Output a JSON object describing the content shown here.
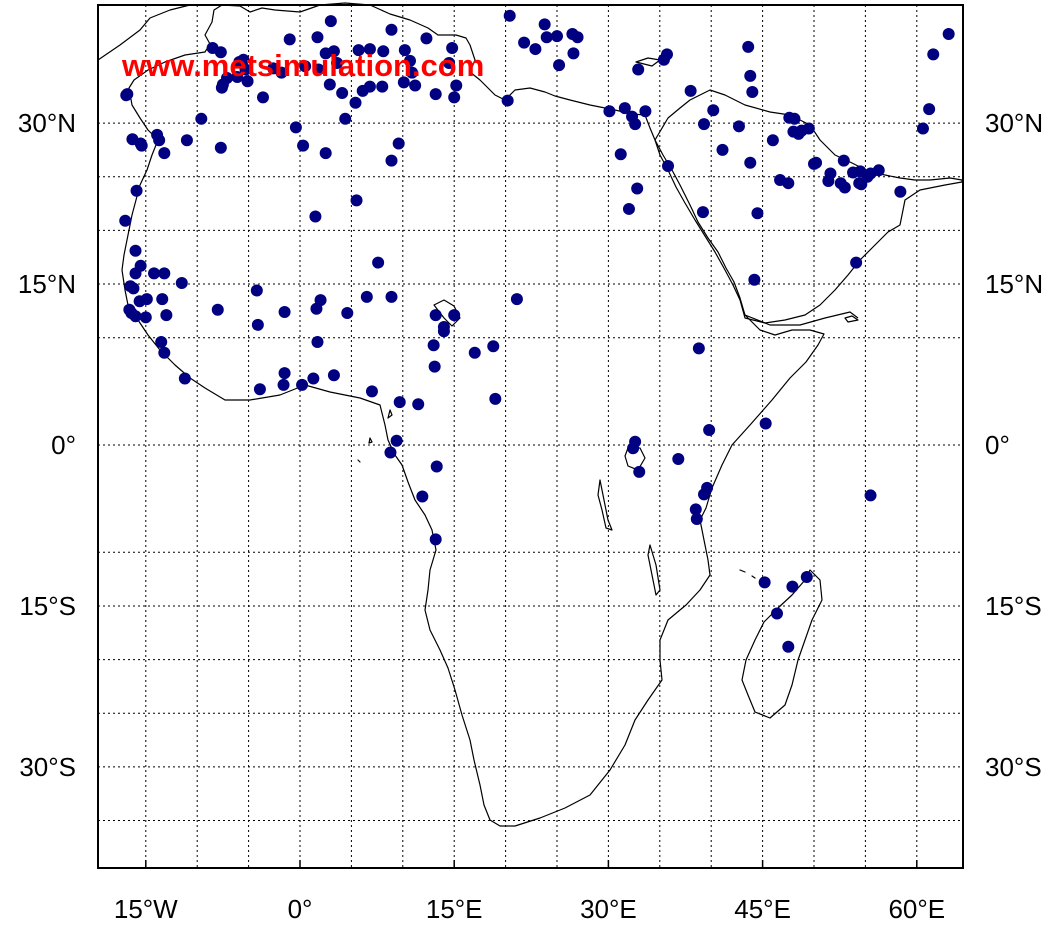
{
  "watermark": "www.metsimulation.com",
  "map": {
    "projection": "cylindrical-equidistant",
    "lon_range": [
      -20,
      64
    ],
    "lat_range": [
      -40,
      38
    ],
    "grid": true,
    "grid_style": "dotted",
    "marker_color": "#000080",
    "coastline_color": "#000000",
    "lon_ticks": [
      {
        "value": -15,
        "label": "15°W"
      },
      {
        "value": 0,
        "label": "0°"
      },
      {
        "value": 15,
        "label": "15°E"
      },
      {
        "value": 30,
        "label": "30°E"
      },
      {
        "value": 45,
        "label": "45°E"
      },
      {
        "value": 60,
        "label": "60°E"
      }
    ],
    "lat_ticks": [
      {
        "value": 30,
        "label": "30°N"
      },
      {
        "value": 15,
        "label": "15°N"
      },
      {
        "value": 0,
        "label": "0°"
      },
      {
        "value": -15,
        "label": "15°S"
      },
      {
        "value": -30,
        "label": "30°S"
      }
    ],
    "extra_grid_lat": [
      25,
      20,
      10,
      -10,
      -20,
      -25,
      -35
    ],
    "extra_grid_lon": [
      -10,
      -5,
      5,
      10,
      20,
      25,
      35,
      40,
      50,
      55
    ]
  },
  "chart_data": {
    "type": "scatter",
    "title": "",
    "xlabel": "",
    "ylabel": "",
    "xlim": [
      -20,
      64
    ],
    "ylim": [
      -40,
      38
    ],
    "marker_color": "#000080",
    "stations": [
      [
        -8.5,
        37.0
      ],
      [
        -7.7,
        36.6
      ],
      [
        -5.9,
        35.7
      ],
      [
        -5.5,
        35.9
      ],
      [
        -2.6,
        35.1
      ],
      [
        -5.3,
        35.0
      ],
      [
        -6.1,
        34.3
      ],
      [
        -7.1,
        34.2
      ],
      [
        -7.5,
        33.6
      ],
      [
        -5.1,
        33.9
      ],
      [
        -7.6,
        33.3
      ],
      [
        -1.8,
        34.7
      ],
      [
        0.5,
        35.3
      ],
      [
        1.8,
        35.0
      ],
      [
        3.6,
        35.6
      ],
      [
        2.5,
        36.5
      ],
      [
        3.3,
        36.7
      ],
      [
        5.7,
        36.8
      ],
      [
        6.8,
        36.9
      ],
      [
        8.1,
        36.7
      ],
      [
        10.2,
        36.8
      ],
      [
        10.7,
        35.8
      ],
      [
        10.9,
        34.7
      ],
      [
        10.1,
        33.8
      ],
      [
        11.2,
        33.5
      ],
      [
        13.2,
        32.7
      ],
      [
        15.2,
        33.5
      ],
      [
        15.0,
        32.4
      ],
      [
        20.2,
        32.1
      ],
      [
        14.5,
        35.6
      ],
      [
        -1.0,
        37.8
      ],
      [
        1.7,
        38.0
      ],
      [
        3.0,
        39.5
      ],
      [
        8.9,
        38.7
      ],
      [
        12.3,
        37.9
      ],
      [
        14.8,
        37.0
      ],
      [
        -15.5,
        28.1
      ],
      [
        -16.3,
        28.5
      ],
      [
        -13.9,
        28.9
      ],
      [
        -13.7,
        28.4
      ],
      [
        -15.4,
        27.9
      ],
      [
        -13.2,
        27.2
      ],
      [
        -11.0,
        28.4
      ],
      [
        -9.6,
        30.4
      ],
      [
        -7.7,
        27.7
      ],
      [
        -16.8,
        32.7
      ],
      [
        -16.9,
        32.6
      ],
      [
        -3.6,
        32.4
      ],
      [
        2.9,
        33.6
      ],
      [
        6.1,
        33.0
      ],
      [
        6.8,
        33.4
      ],
      [
        8.0,
        33.4
      ],
      [
        5.4,
        31.9
      ],
      [
        4.1,
        32.8
      ],
      [
        -0.4,
        29.6
      ],
      [
        0.3,
        27.9
      ],
      [
        2.5,
        27.2
      ],
      [
        1.5,
        21.3
      ],
      [
        5.5,
        22.8
      ],
      [
        8.9,
        26.5
      ],
      [
        9.6,
        28.1
      ],
      [
        4.4,
        30.4
      ],
      [
        -15.9,
        23.7
      ],
      [
        -17.0,
        20.9
      ],
      [
        -16.0,
        18.1
      ],
      [
        -16.5,
        14.8
      ],
      [
        -16.0,
        16.0
      ],
      [
        -16.2,
        14.6
      ],
      [
        -15.5,
        16.7
      ],
      [
        -14.2,
        16.0
      ],
      [
        -13.2,
        16.0
      ],
      [
        -15.6,
        13.4
      ],
      [
        -16.6,
        12.6
      ],
      [
        -16.4,
        12.3
      ],
      [
        -16.0,
        12.0
      ],
      [
        -14.9,
        13.6
      ],
      [
        -13.4,
        13.6
      ],
      [
        -15.0,
        11.9
      ],
      [
        -13.0,
        12.1
      ],
      [
        -11.5,
        15.1
      ],
      [
        -8.0,
        12.6
      ],
      [
        -4.2,
        14.4
      ],
      [
        -4.1,
        11.2
      ],
      [
        -1.5,
        12.4
      ],
      [
        1.6,
        12.7
      ],
      [
        2.0,
        13.5
      ],
      [
        4.6,
        12.3
      ],
      [
        6.5,
        13.8
      ],
      [
        7.6,
        17.0
      ],
      [
        8.9,
        13.8
      ],
      [
        13.2,
        12.1
      ],
      [
        14.0,
        11.0
      ],
      [
        15.0,
        12.1
      ],
      [
        17.0,
        8.6
      ],
      [
        18.8,
        9.2
      ],
      [
        13.0,
        9.3
      ],
      [
        13.1,
        7.3
      ],
      [
        14.0,
        10.6
      ],
      [
        21.1,
        13.6
      ],
      [
        19.0,
        4.3
      ],
      [
        11.5,
        3.8
      ],
      [
        9.7,
        4.0
      ],
      [
        7.0,
        5.0
      ],
      [
        3.3,
        6.5
      ],
      [
        1.3,
        6.2
      ],
      [
        -1.6,
        5.6
      ],
      [
        -3.9,
        5.2
      ],
      [
        -1.5,
        6.7
      ],
      [
        0.2,
        5.6
      ],
      [
        -11.2,
        6.2
      ],
      [
        -13.2,
        8.6
      ],
      [
        -13.5,
        9.6
      ],
      [
        1.7,
        9.6
      ],
      [
        9.4,
        0.4
      ],
      [
        8.8,
        -0.7
      ],
      [
        13.3,
        -2.0
      ],
      [
        11.9,
        -4.8
      ],
      [
        13.2,
        -8.8
      ],
      [
        32.6,
        0.3
      ],
      [
        32.4,
        -0.3
      ],
      [
        33.0,
        -2.5
      ],
      [
        36.8,
        -1.3
      ],
      [
        39.6,
        -4.0
      ],
      [
        39.3,
        -4.6
      ],
      [
        38.6,
        -6.9
      ],
      [
        38.5,
        -6.0
      ],
      [
        39.8,
        1.4
      ],
      [
        45.3,
        2.0
      ],
      [
        38.8,
        9.0
      ],
      [
        55.5,
        -4.7
      ],
      [
        45.2,
        -12.8
      ],
      [
        49.3,
        -12.3
      ],
      [
        47.9,
        -13.2
      ],
      [
        46.4,
        -15.7
      ],
      [
        47.5,
        -18.8
      ],
      [
        32.6,
        29.9
      ],
      [
        31.6,
        31.4
      ],
      [
        33.6,
        31.1
      ],
      [
        30.1,
        31.1
      ],
      [
        32.3,
        30.6
      ],
      [
        31.2,
        27.1
      ],
      [
        32.0,
        22.0
      ],
      [
        32.8,
        23.9
      ],
      [
        35.8,
        26.0
      ],
      [
        38.0,
        33.0
      ],
      [
        39.3,
        29.9
      ],
      [
        40.2,
        31.2
      ],
      [
        42.7,
        29.7
      ],
      [
        43.8,
        34.4
      ],
      [
        44.0,
        32.9
      ],
      [
        43.6,
        37.1
      ],
      [
        35.4,
        35.9
      ],
      [
        35.7,
        36.4
      ],
      [
        32.9,
        35.0
      ],
      [
        26.6,
        36.5
      ],
      [
        25.2,
        35.4
      ],
      [
        22.9,
        36.9
      ],
      [
        21.8,
        37.5
      ],
      [
        24.0,
        38.0
      ],
      [
        25.0,
        38.1
      ],
      [
        26.5,
        38.3
      ],
      [
        27.0,
        38.0
      ],
      [
        23.8,
        39.2
      ],
      [
        20.4,
        40.0
      ],
      [
        41.1,
        27.5
      ],
      [
        43.8,
        26.3
      ],
      [
        39.2,
        21.7
      ],
      [
        44.5,
        21.6
      ],
      [
        46.7,
        24.7
      ],
      [
        47.5,
        24.4
      ],
      [
        46.0,
        28.4
      ],
      [
        48.0,
        29.2
      ],
      [
        48.5,
        29.0
      ],
      [
        48.8,
        29.3
      ],
      [
        47.6,
        30.5
      ],
      [
        48.1,
        30.4
      ],
      [
        49.5,
        29.5
      ],
      [
        50.2,
        26.3
      ],
      [
        51.6,
        25.3
      ],
      [
        51.4,
        24.6
      ],
      [
        52.6,
        24.4
      ],
      [
        53.0,
        24.0
      ],
      [
        54.4,
        24.4
      ],
      [
        54.6,
        24.3
      ],
      [
        55.2,
        25.0
      ],
      [
        55.5,
        25.3
      ],
      [
        54.5,
        25.5
      ],
      [
        53.8,
        25.4
      ],
      [
        56.3,
        25.6
      ],
      [
        58.4,
        23.6
      ],
      [
        60.6,
        29.5
      ],
      [
        61.2,
        31.3
      ],
      [
        61.6,
        36.4
      ],
      [
        63.1,
        38.3
      ],
      [
        50.0,
        26.2
      ],
      [
        44.2,
        15.4
      ],
      [
        54.1,
        17.0
      ],
      [
        52.9,
        26.5
      ]
    ]
  }
}
